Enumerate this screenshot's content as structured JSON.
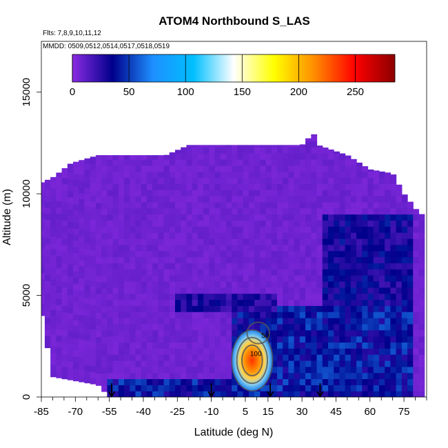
{
  "chart_data": {
    "type": "heatmap",
    "title": "ATOM4 Northbound S_LAS",
    "flights_note": "Flts: 7,8,9,10,11,12",
    "dates_note": "MMDD: 0509,0512,0514,0517,0518,0519",
    "xlabel": "Latitude (deg N)",
    "ylabel": "Altitude (m)",
    "xlim": [
      -85,
      85
    ],
    "ylim": [
      0,
      17500
    ],
    "x_ticks": [
      -85,
      -70,
      -55,
      -40,
      -25,
      -10,
      5,
      15,
      30,
      45,
      60,
      75
    ],
    "y_ticks": [
      0,
      5000,
      10000,
      15000
    ],
    "colorbar": {
      "range": [
        0,
        285
      ],
      "ticks": [
        0,
        50,
        100,
        150,
        200,
        250
      ],
      "colors": [
        "#8a2be2",
        "#00008b",
        "#1e90ff",
        "#00bfff",
        "#ffffff",
        "#ffff00",
        "#ff8c00",
        "#ff0000",
        "#8b0000"
      ]
    },
    "upper_envelope": [
      {
        "lat": -86,
        "alt": 10500
      },
      {
        "lat": -80,
        "alt": 10800
      },
      {
        "lat": -72,
        "alt": 11500
      },
      {
        "lat": -60,
        "alt": 11900
      },
      {
        "lat": -30,
        "alt": 11900
      },
      {
        "lat": -20,
        "alt": 12400
      },
      {
        "lat": 30,
        "alt": 12400
      },
      {
        "lat": 35,
        "alt": 13000
      },
      {
        "lat": 37,
        "alt": 12400
      },
      {
        "lat": 50,
        "alt": 11900
      },
      {
        "lat": 60,
        "alt": 11200
      },
      {
        "lat": 70,
        "alt": 11000
      },
      {
        "lat": 75,
        "alt": 10000
      },
      {
        "lat": 82,
        "alt": 9000
      }
    ],
    "lower_envelope": [
      {
        "lat": -86,
        "alt": 4800
      },
      {
        "lat": -80,
        "alt": 1000
      },
      {
        "lat": -60,
        "alt": 600
      },
      {
        "lat": -55,
        "alt": 0
      },
      {
        "lat": 82,
        "alt": 0
      }
    ],
    "enhanced_regions": [
      {
        "lat_range": [
          -55,
          80
        ],
        "alt_range": [
          0,
          900
        ],
        "value": 45
      },
      {
        "lat_range": [
          0,
          20
        ],
        "alt_range": [
          0,
          4200
        ],
        "value": 40
      },
      {
        "lat_range": [
          20,
          80
        ],
        "alt_range": [
          900,
          4500
        ],
        "value": 45
      },
      {
        "lat_range": [
          40,
          80
        ],
        "alt_range": [
          4500,
          9000
        ],
        "value": 35
      },
      {
        "lat_range": [
          -25,
          20
        ],
        "alt_range": [
          4200,
          5000
        ],
        "value": 30
      }
    ],
    "plume": {
      "center_lat": 8,
      "center_alt": 1800,
      "peak_value": 255,
      "contour_labels": [
        "50",
        "100"
      ]
    },
    "flight_markers_lat": [
      -54,
      -10,
      16,
      38
    ]
  }
}
